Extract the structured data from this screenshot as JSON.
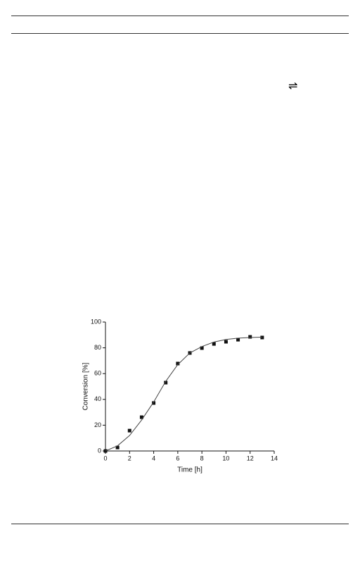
{
  "scheme": {
    "arrow": "⇌"
  },
  "chart_data": {
    "type": "scatter",
    "xlabel": "Time [h]",
    "ylabel": "Conversion [%]",
    "x": [
      0,
      1,
      2,
      3,
      4,
      5,
      6,
      7,
      8,
      9,
      10,
      11,
      12,
      13
    ],
    "series": [
      {
        "style": "marker",
        "color": "#111",
        "values": [
          0,
          2.7,
          15.8,
          26.2,
          37.2,
          53,
          67.8,
          76,
          79.8,
          83,
          84.7,
          86.3,
          88.5,
          88
        ]
      },
      {
        "style": "line",
        "color": "#444",
        "values": [
          0,
          4,
          12,
          24,
          38,
          54,
          67,
          76,
          81,
          84.5,
          86.5,
          87.5,
          88,
          88.3
        ]
      }
    ],
    "xlim": [
      0,
      14
    ],
    "xticks": [
      0,
      2,
      4,
      6,
      8,
      10,
      12,
      14
    ],
    "ylim": [
      0,
      100
    ],
    "yticks": [
      0,
      20,
      40,
      60,
      80,
      100
    ]
  }
}
